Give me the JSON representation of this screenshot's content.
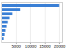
{
  "chart_data": {
    "type": "bar",
    "orientation": "horizontal",
    "categories": [
      null,
      null,
      null,
      null,
      null,
      null,
      null,
      null,
      null
    ],
    "values": [
      20000,
      6500,
      3800,
      2800,
      2200,
      1800,
      1400,
      1100,
      800
    ],
    "color": "#3a7fd5",
    "xlim": [
      0,
      21000
    ],
    "xticks": [
      5000,
      10000,
      15000,
      20000
    ],
    "grid": true,
    "tick_labels": "x"
  }
}
